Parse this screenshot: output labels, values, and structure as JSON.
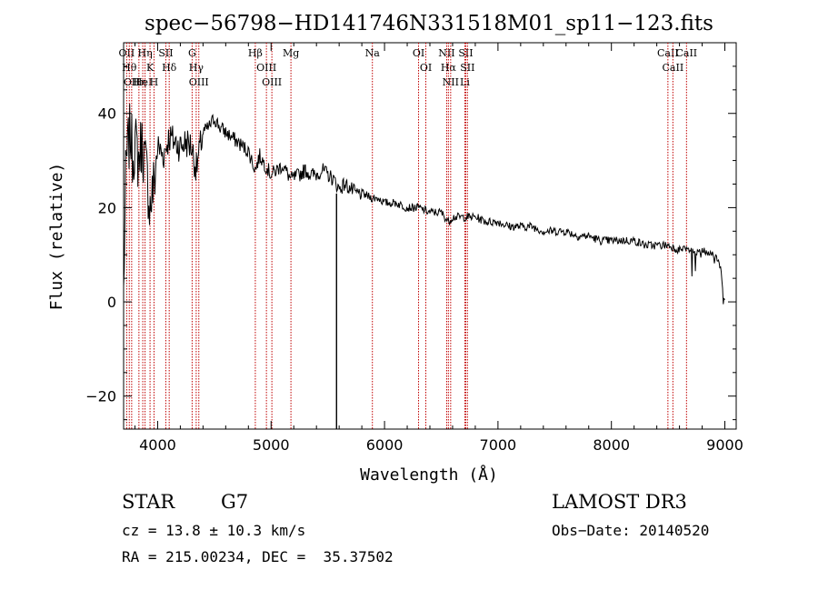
{
  "chart_data": {
    "type": "line",
    "title": "spec−56798−HD141746N331518M01_sp11−123.fits",
    "xlabel": "Wavelength (Å)",
    "ylabel": "Flux (relative)",
    "xlim": [
      3700,
      9100
    ],
    "ylim": [
      -27,
      55
    ],
    "x_ticks": [
      4000,
      5000,
      6000,
      7000,
      8000,
      9000
    ],
    "x_tick_labels": [
      "4000",
      "5000",
      "6000",
      "7000",
      "8000",
      "9000"
    ],
    "y_ticks": [
      -20,
      0,
      20,
      40
    ],
    "y_tick_labels": [
      "−20",
      "0",
      "20",
      "40"
    ],
    "series": [
      {
        "name": "flux",
        "x": [
          3700,
          3720,
          3740,
          3760,
          3780,
          3800,
          3830,
          3860,
          3900,
          3933,
          3968,
          4000,
          4050,
          4100,
          4150,
          4200,
          4250,
          4300,
          4340,
          4400,
          4450,
          4500,
          4550,
          4600,
          4650,
          4700,
          4750,
          4800,
          4861,
          4900,
          4950,
          5000,
          5050,
          5100,
          5175,
          5250,
          5300,
          5350,
          5400,
          5450,
          5500,
          5550,
          5600,
          5650,
          5700,
          5750,
          5800,
          5893,
          5950,
          6000,
          6100,
          6200,
          6300,
          6400,
          6500,
          6563,
          6600,
          6700,
          6800,
          6900,
          7000,
          7100,
          7200,
          7300,
          7400,
          7500,
          7600,
          7700,
          7800,
          7900,
          8000,
          8100,
          8200,
          8300,
          8400,
          8500,
          8600,
          8700,
          8750,
          8800,
          8850,
          8900,
          8950,
          9000
        ],
        "values": [
          2,
          28,
          33,
          36,
          31,
          34,
          30,
          34,
          28,
          20,
          25,
          33,
          31,
          35,
          34,
          33,
          34,
          33,
          28,
          36,
          37,
          39,
          37,
          36,
          35,
          34,
          33,
          32,
          28,
          31,
          29,
          27,
          28,
          29,
          26,
          27,
          28,
          27,
          27,
          28,
          27,
          26,
          24,
          25,
          24,
          23,
          23,
          22,
          22,
          21,
          21,
          20,
          20,
          19,
          19,
          17,
          18,
          18,
          18,
          17,
          17,
          16,
          16,
          16,
          15,
          15,
          15,
          14,
          14,
          13,
          13,
          13,
          13,
          12,
          12,
          12,
          11,
          11,
          10,
          11,
          10,
          10,
          9,
          0
        ]
      }
    ],
    "spike": {
      "x": 5577,
      "values": [
        -27,
        23
      ]
    },
    "lines": [
      {
        "x": 3727,
        "label": "OII"
      },
      {
        "x": 3750,
        "label": "Hθ"
      },
      {
        "x": 3771,
        "label": "OII"
      },
      {
        "x": 3835,
        "label": "Hη"
      },
      {
        "x": 3869,
        "label": "HeI"
      },
      {
        "x": 3889,
        "label": "Hη"
      },
      {
        "x": 3933,
        "label": "K"
      },
      {
        "x": 3968,
        "label": "H"
      },
      {
        "x": 4072,
        "label": "SII"
      },
      {
        "x": 4102,
        "label": "Hδ"
      },
      {
        "x": 4304,
        "label": "G"
      },
      {
        "x": 4340,
        "label": "Hγ"
      },
      {
        "x": 4363,
        "label": "OIII"
      },
      {
        "x": 4861,
        "label": "Hβ"
      },
      {
        "x": 4959,
        "label": "OIII"
      },
      {
        "x": 5007,
        "label": "OIII"
      },
      {
        "x": 5175,
        "label": "Mg"
      },
      {
        "x": 5893,
        "label": "Na"
      },
      {
        "x": 6300,
        "label": "OI"
      },
      {
        "x": 6364,
        "label": "OI"
      },
      {
        "x": 6548,
        "label": "NII"
      },
      {
        "x": 6563,
        "label": "Hα"
      },
      {
        "x": 6583,
        "label": "NII"
      },
      {
        "x": 6708,
        "label": "Li"
      },
      {
        "x": 6716,
        "label": "SII"
      },
      {
        "x": 6731,
        "label": "SII"
      },
      {
        "x": 8498,
        "label": "CaII"
      },
      {
        "x": 8542,
        "label": "CaII"
      },
      {
        "x": 8662,
        "label": "CaII"
      }
    ],
    "line_color": "#c00000",
    "grid": false
  },
  "info": {
    "class": "STAR",
    "subclass": "G7",
    "survey": "LAMOST DR3",
    "cz": "cz = 13.8 ± 10.3 km/s",
    "obs_date": "Obs−Date: 20140520",
    "coords": "RA = 215.00234, DEC =  35.37502"
  }
}
